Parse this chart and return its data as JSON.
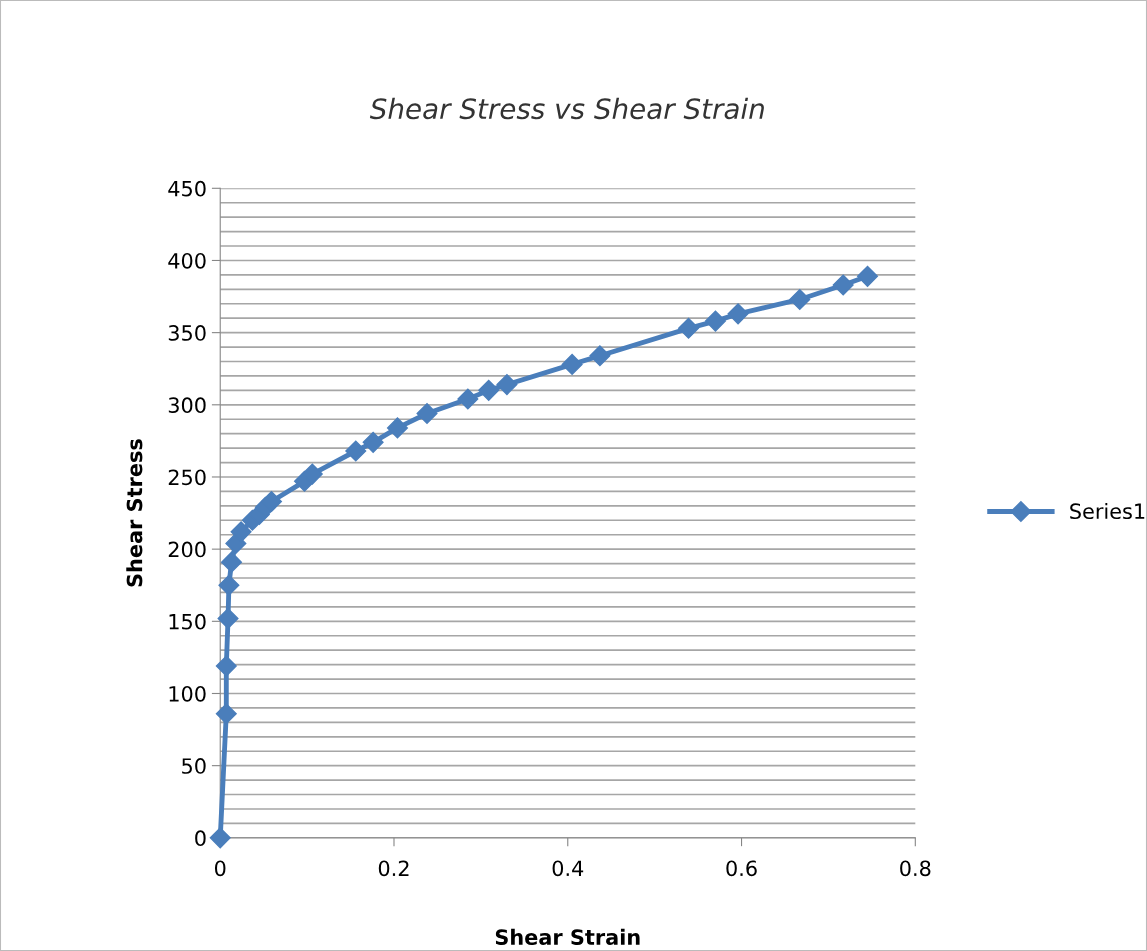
{
  "chart_data": {
    "type": "line",
    "title": "Shear Stress vs Shear Strain",
    "xlabel": "Shear Strain",
    "ylabel": "Shear Stress",
    "xlim": [
      0,
      0.8
    ],
    "xticks": [
      0,
      {
        "value": 0.2,
        "label": "0.2"
      },
      {
        "value": 0.4,
        "label": "0.4"
      },
      {
        "value": 0.6,
        "label": "0.6"
      },
      {
        "value": 0.8,
        "label": "0.8"
      }
    ],
    "ylim": [
      0,
      450
    ],
    "yticks": [
      0,
      50,
      100,
      150,
      200,
      250,
      300,
      350,
      400,
      450
    ],
    "grid": "y",
    "legend": "right",
    "marker": "diamond",
    "line_style": "solid",
    "series": [
      {
        "name": "Series1",
        "color": "#4a7ebb",
        "x": [
          0,
          0.007,
          0.007,
          0.009,
          0.01,
          0.013,
          0.018,
          0.024,
          0.037,
          0.045,
          0.052,
          0.059,
          0.097,
          0.106,
          0.156,
          0.176,
          0.204,
          0.238,
          0.285,
          0.309,
          0.33,
          0.405,
          0.437,
          0.539,
          0.57,
          0.596,
          0.667,
          0.717,
          0.745
        ],
        "values": [
          0,
          86,
          119,
          152,
          175,
          191,
          204,
          212,
          220,
          224,
          229,
          233,
          247,
          252,
          268,
          274,
          284,
          294,
          304,
          310,
          314,
          328,
          334,
          353,
          358,
          363,
          373,
          383,
          389
        ]
      }
    ]
  }
}
